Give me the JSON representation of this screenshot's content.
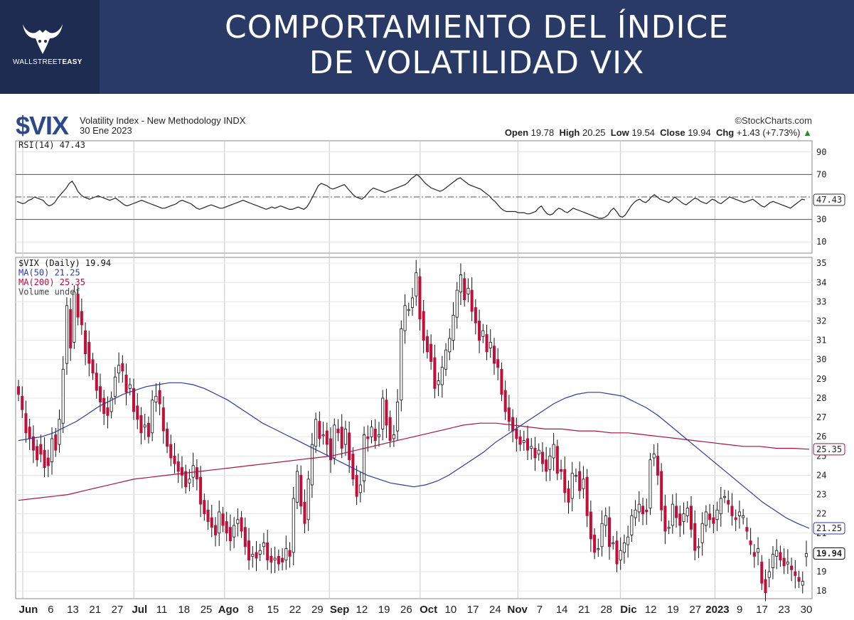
{
  "banner": {
    "title_line1": "COMPORTAMIENTO DEL ÍNDICE",
    "title_line2": "DE VOLATILIDAD VIX",
    "logo_text_a": "WALLSTREET",
    "logo_text_b": "EASY"
  },
  "header": {
    "ticker": "$VIX",
    "description": "Volatility Index - New Methodology  INDX",
    "date": "30 Ene 2023",
    "credit": "©StockCharts.com",
    "ohlc": {
      "open_label": "Open",
      "open": "19.78",
      "high_label": "High",
      "high": "20.25",
      "low_label": "Low",
      "low": "19.54",
      "close_label": "Close",
      "close": "19.94",
      "chg_label": "Chg",
      "chg": "+1.43 (+7.73%)",
      "chg_arrow": "▲"
    }
  },
  "colors": {
    "up_candle": "#ffffff",
    "down_candle": "#c0103a",
    "ma50": "#2a3aa0",
    "ma200": "#b01040",
    "rsi": "#222222",
    "banner": "#2a3a66"
  },
  "chart_data": [
    {
      "type": "line",
      "title": "RSI(14) 47.43",
      "ylim": [
        0,
        100
      ],
      "yticks": [
        "90",
        "70",
        "30",
        "10"
      ],
      "reference_lines": [
        70,
        30
      ],
      "last_value_label": "47.43",
      "series": [
        {
          "name": "RSI(14)",
          "values": [
            46,
            45,
            44,
            45,
            47,
            48,
            50,
            49,
            48,
            47,
            44,
            42,
            43,
            45,
            49,
            52,
            55,
            58,
            62,
            64,
            60,
            55,
            52,
            50,
            49,
            48,
            49,
            50,
            51,
            50,
            49,
            48,
            47,
            48,
            49,
            47,
            45,
            43,
            42,
            43,
            44,
            45,
            46,
            47,
            46,
            45,
            44,
            43,
            42,
            41,
            40,
            40,
            41,
            42,
            43,
            44,
            46,
            47,
            46,
            45,
            44,
            42,
            40,
            39,
            40,
            41,
            42,
            43,
            42,
            41,
            40,
            40,
            41,
            42,
            43,
            44,
            45,
            46,
            47,
            46,
            45,
            44,
            43,
            42,
            41,
            40,
            39,
            40,
            41,
            40,
            41,
            42,
            41,
            40,
            39,
            39,
            40,
            41,
            40,
            39,
            41,
            45,
            50,
            55,
            60,
            62,
            61,
            60,
            58,
            57,
            58,
            59,
            60,
            61,
            58,
            55,
            52,
            50,
            49,
            48,
            50,
            53,
            56,
            58,
            57,
            56,
            55,
            54,
            55,
            56,
            57,
            58,
            59,
            60,
            61,
            63,
            66,
            68,
            70,
            68,
            65,
            62,
            60,
            58,
            57,
            56,
            55,
            56,
            58,
            60,
            62,
            64,
            66,
            67,
            65,
            63,
            61,
            60,
            59,
            58,
            57,
            55,
            53,
            51,
            48,
            46,
            43,
            40,
            38,
            37,
            37,
            37,
            37,
            36,
            36,
            36,
            35,
            35,
            36,
            37,
            40,
            42,
            38,
            35,
            34,
            35,
            38,
            40,
            39,
            37,
            36,
            38,
            40,
            39,
            38,
            37,
            36,
            35,
            34,
            33,
            32,
            31,
            31,
            32,
            34,
            38,
            40,
            37,
            33,
            32,
            34,
            38,
            42,
            45,
            47,
            48,
            46,
            45,
            47,
            50,
            52,
            50,
            48,
            47,
            46,
            45,
            47,
            50,
            48,
            46,
            44,
            43,
            45,
            47,
            49,
            48,
            46,
            45,
            44,
            46,
            48,
            47,
            45,
            44,
            46,
            48,
            50,
            49,
            48,
            47,
            46,
            45,
            46,
            47,
            48,
            46,
            44,
            42,
            41,
            43,
            45,
            46,
            45,
            44,
            43,
            42,
            41,
            40,
            42,
            44,
            46,
            48,
            47.43
          ]
        }
      ],
      "xlabel": "",
      "ylabel": ""
    },
    {
      "type": "candlestick",
      "title": "$VIX (Daily) 19.94",
      "legend": [
        "$VIX (Daily) 19.94",
        "MA(50) 21.25",
        "MA(200) 25.35",
        "Volume undef"
      ],
      "legend_placement": "top-left",
      "ylim": [
        17.6,
        35.3
      ],
      "yticks": [
        "35",
        "34",
        "33",
        "32",
        "31",
        "30",
        "29",
        "28",
        "27",
        "26",
        "25",
        "24",
        "23",
        "22",
        "21",
        "20",
        "19",
        "18"
      ],
      "x": [
        "Jun",
        "6",
        "13",
        "21",
        "27",
        "Jul",
        "11",
        "18",
        "25",
        "Ago",
        "8",
        "15",
        "22",
        "29",
        "Sep",
        "12",
        "19",
        "26",
        "Oct",
        "10",
        "17",
        "24",
        "Nov",
        "7",
        "14",
        "21",
        "28",
        "Dic",
        "12",
        "19",
        "27",
        "2023",
        "9",
        "17",
        "23",
        "30"
      ],
      "last_labels": {
        "close": "19.94",
        "ma50": "21.25",
        "ma200": "25.35"
      },
      "closes": [
        28.2,
        27.4,
        26.2,
        25.9,
        25.3,
        24.8,
        25.1,
        24.4,
        24.5,
        25.9,
        25.3,
        26.9,
        29.5,
        32.8,
        30.6,
        33.5,
        32.2,
        31.8,
        30.3,
        29.8,
        29.3,
        28.4,
        27.8,
        27.2,
        27.1,
        28.0,
        29.1,
        29.7,
        29.4,
        28.3,
        28.7,
        27.3,
        26.9,
        26.2,
        26.6,
        26.0,
        27.9,
        28.1,
        27.7,
        26.3,
        25.5,
        24.9,
        24.6,
        24.2,
        24.0,
        23.4,
        23.8,
        24.5,
        23.8,
        22.5,
        22.0,
        21.6,
        21.3,
        20.9,
        22.1,
        21.4,
        21.0,
        20.6,
        21.4,
        21.7,
        21.1,
        20.3,
        19.6,
        19.9,
        19.7,
        20.1,
        20.5,
        19.6,
        19.5,
        19.7,
        19.4,
        19.5,
        20.2,
        19.8,
        22.8,
        24.2,
        22.4,
        21.5,
        23.8,
        25.6,
        26.9,
        25.9,
        26.1,
        25.6,
        24.8,
        26.6,
        26.2,
        25.4,
        26.4,
        24.8,
        23.8,
        22.9,
        23.5,
        26.1,
        25.9,
        26.5,
        25.8,
        26.1,
        28.0,
        26.6,
        25.8,
        26.1,
        27.8,
        31.6,
        32.8,
        32.6,
        33.2,
        34.5,
        32.1,
        31.0,
        30.4,
        29.9,
        28.5,
        28.9,
        29.6,
        30.5,
        31.1,
        32.3,
        33.6,
        34.4,
        33.1,
        33.7,
        32.5,
        31.9,
        31.0,
        31.5,
        30.4,
        30.9,
        29.8,
        29.6,
        28.2,
        27.3,
        26.8,
        26.3,
        25.9,
        25.6,
        25.8,
        25.3,
        25.5,
        24.9,
        25.3,
        24.6,
        24.2,
        25.0,
        25.6,
        24.1,
        24.2,
        23.1,
        22.6,
        24.1,
        24.0,
        23.2,
        23.8,
        21.9,
        20.7,
        20.0,
        20.2,
        21.5,
        21.9,
        20.3,
        20.5,
        19.4,
        20.1,
        20.5,
        20.8,
        21.9,
        22.2,
        22.5,
        22.0,
        22.1,
        24.8,
        25.1,
        24.0,
        22.2,
        21.1,
        21.3,
        22.5,
        21.8,
        21.4,
        22.0,
        22.3,
        21.2,
        20.1,
        20.3,
        21.5,
        22.1,
        21.7,
        21.5,
        22.2,
        22.8,
        22.9,
        22.5,
        21.9,
        21.7,
        22.1,
        21.9,
        21.1,
        20.4,
        19.8,
        20.2,
        18.4,
        17.9,
        19.0,
        19.9,
        20.1,
        19.6,
        19.3,
        19.5,
        19.1,
        18.8,
        18.5,
        18.5,
        19.94
      ],
      "opens": [
        28.6,
        28.1,
        27.2,
        26.5,
        26.0,
        25.5,
        25.6,
        25.3,
        24.9,
        24.7,
        26.1,
        25.6,
        26.7,
        29.8,
        32.6,
        30.9,
        33.4,
        32.5,
        31.5,
        30.9,
        30.0,
        29.3,
        28.6,
        28.0,
        27.5,
        27.3,
        28.1,
        29.3,
        29.8,
        29.2,
        28.5,
        28.5,
        27.6,
        27.1,
        26.5,
        26.7,
        26.2,
        27.8,
        28.4,
        27.5,
        26.4,
        25.6,
        25.0,
        24.7,
        24.4,
        24.2,
        23.6,
        23.9,
        24.4,
        23.9,
        22.7,
        22.2,
        21.8,
        21.4,
        21.0,
        22.0,
        21.6,
        21.3,
        20.8,
        21.5,
        21.8,
        21.3,
        20.6,
        19.8,
        20.0,
        19.9,
        20.3,
        20.5,
        19.8,
        19.6,
        19.8,
        19.7,
        19.6,
        20.1,
        20.0,
        22.6,
        24.0,
        22.6,
        21.7,
        23.5,
        25.5,
        26.8,
        26.1,
        26.3,
        25.9,
        24.9,
        26.4,
        26.5,
        25.6,
        26.2,
        25.1,
        24.0,
        23.1,
        23.7,
        26.0,
        26.0,
        26.4,
        26.0,
        26.4,
        27.9,
        27.0,
        25.9,
        26.3,
        27.9,
        31.5,
        32.6,
        32.7,
        33.3,
        34.3,
        32.5,
        31.2,
        30.8,
        30.1,
        28.7,
        28.7,
        29.5,
        30.4,
        31.0,
        32.2,
        33.5,
        34.2,
        33.4,
        33.6,
        32.7,
        32.0,
        31.2,
        31.3,
        30.6,
        30.7,
        30.0,
        29.5,
        28.4,
        27.5,
        27.0,
        26.4,
        26.0,
        25.7,
        25.9,
        25.4,
        25.4,
        25.1,
        25.2,
        24.8,
        24.3,
        24.9,
        25.5,
        24.3,
        24.3,
        23.3,
        22.8,
        24.0,
        24.2,
        23.3,
        23.9,
        22.1,
        20.9,
        20.2,
        20.3,
        21.4,
        21.8,
        20.5,
        20.6,
        19.6,
        20.0,
        20.4,
        20.9,
        21.8,
        22.1,
        22.4,
        22.2,
        22.3,
        24.9,
        25.0,
        24.2,
        22.4,
        21.3,
        21.4,
        22.4,
        22.0,
        21.6,
        21.9,
        22.4,
        21.5,
        20.3,
        20.5,
        21.4,
        22.0,
        21.8,
        21.7,
        22.0,
        22.9,
        22.7,
        22.4,
        21.8,
        21.9,
        21.8,
        21.3,
        20.6,
        20.0,
        20.0,
        19.5,
        18.6,
        18.7,
        19.2,
        19.8,
        20.0,
        19.7,
        19.4,
        19.3,
        19.0,
        18.7,
        18.3,
        19.78
      ],
      "ma50": [
        25.8,
        25.9,
        26.0,
        26.2,
        26.5,
        26.8,
        27.2,
        27.6,
        27.9,
        28.2,
        28.4,
        28.6,
        28.7,
        28.8,
        28.8,
        28.7,
        28.5,
        28.2,
        27.9,
        27.5,
        27.1,
        26.7,
        26.4,
        26.1,
        25.8,
        25.5,
        25.2,
        24.9,
        24.6,
        24.3,
        24.0,
        23.8,
        23.6,
        23.5,
        23.4,
        23.5,
        23.7,
        24.0,
        24.4,
        24.8,
        25.2,
        25.7,
        26.1,
        26.5,
        26.9,
        27.3,
        27.7,
        28.0,
        28.2,
        28.3,
        28.3,
        28.2,
        28.1,
        27.8,
        27.5,
        27.1,
        26.6,
        26.1,
        25.6,
        25.1,
        24.6,
        24.1,
        23.6,
        23.1,
        22.6,
        22.2,
        21.8,
        21.5,
        21.25
      ],
      "ma200": [
        22.7,
        22.8,
        22.9,
        23.0,
        23.2,
        23.4,
        23.6,
        23.8,
        23.9,
        24.0,
        24.1,
        24.2,
        24.3,
        24.4,
        24.5,
        24.6,
        24.7,
        24.8,
        24.9,
        25.0,
        25.2,
        25.4,
        25.6,
        25.8,
        26.0,
        26.2,
        26.4,
        26.6,
        26.7,
        26.7,
        26.6,
        26.5,
        26.4,
        26.4,
        26.3,
        26.3,
        26.2,
        26.2,
        26.1,
        26.0,
        25.9,
        25.8,
        25.7,
        25.6,
        25.5,
        25.5,
        25.4,
        25.4,
        25.35
      ],
      "xlabel": "",
      "ylabel": ""
    }
  ]
}
